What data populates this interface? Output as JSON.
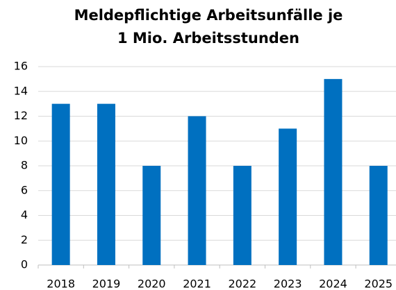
{
  "chart_data": {
    "type": "bar",
    "title": "Meldepflichtige Arbeitsunfälle je 1 Mio. Arbeitsstunden",
    "categories": [
      "2018",
      "2019",
      "2020",
      "2021",
      "2022",
      "2023",
      "2024",
      "2025"
    ],
    "values": [
      13,
      13,
      8,
      12,
      8,
      11,
      15,
      8
    ],
    "color": "#0070c0",
    "ylim": [
      0,
      16
    ],
    "yticks": [
      0,
      2,
      4,
      6,
      8,
      10,
      12,
      14,
      16
    ],
    "grid": true
  }
}
